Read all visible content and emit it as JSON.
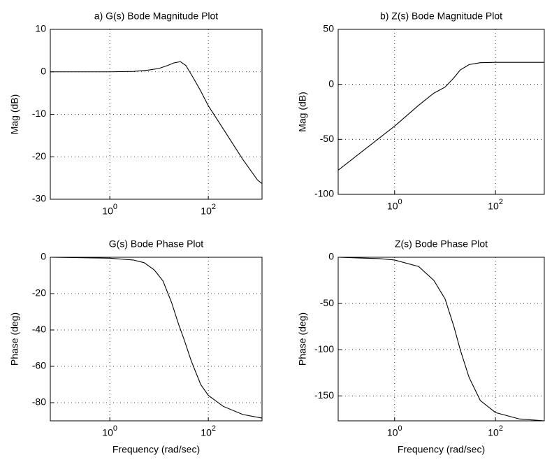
{
  "chart_data": [
    {
      "type": "line",
      "title": "a) G(s) Bode Magnitude Plot",
      "ylabel": "Mag (dB)",
      "x": [
        0.062,
        1,
        3,
        6,
        10,
        15,
        20,
        27,
        35,
        50,
        70,
        100,
        200,
        500,
        1000,
        1230
      ],
      "values": [
        0,
        0,
        0.1,
        0.4,
        0.8,
        1.5,
        2.1,
        2.4,
        1.5,
        -1.5,
        -4.5,
        -8,
        -13.4,
        -20.6,
        -25.5,
        -26.3
      ],
      "color": "#000000",
      "xscale": "log",
      "grid": true,
      "xlim": [
        0.062,
        1230
      ],
      "ylim": [
        -30,
        10
      ],
      "xticks": [
        {
          "value": 1,
          "label": "10^0"
        },
        {
          "value": 100,
          "label": "10^2"
        }
      ],
      "yticks": [
        10,
        0,
        -10,
        -20,
        -30
      ]
    },
    {
      "type": "line",
      "title": "b) Z(s) Bode Magnitude Plot",
      "ylabel": "Mag (dB)",
      "x": [
        0.076,
        1,
        3,
        6,
        10,
        15,
        20,
        30,
        50,
        100,
        300,
        930
      ],
      "values": [
        -78,
        -38,
        -19,
        -8,
        -2.5,
        6,
        13,
        18,
        19.7,
        20,
        20,
        20
      ],
      "color": "#000000",
      "xscale": "log",
      "grid": true,
      "xlim": [
        0.076,
        930
      ],
      "ylim": [
        -100,
        50
      ],
      "xticks": [
        {
          "value": 1,
          "label": "10^0"
        },
        {
          "value": 100,
          "label": "10^2"
        }
      ],
      "yticks": [
        50,
        0,
        -50,
        -100
      ]
    },
    {
      "type": "line",
      "title": "G(s) Bode Phase Plot",
      "ylabel": "Phase (deg)",
      "xlabel": "Frequency (rad/sec)",
      "x": [
        0.062,
        1,
        3,
        5,
        8,
        12,
        18,
        25,
        32,
        45,
        70,
        100,
        200,
        500,
        1230
      ],
      "values": [
        0,
        -0.5,
        -1.5,
        -3,
        -7,
        -13,
        -25,
        -37,
        -45,
        -57,
        -70,
        -76,
        -82,
        -86.5,
        -88.5
      ],
      "color": "#000000",
      "xscale": "log",
      "grid": true,
      "xlim": [
        0.062,
        1230
      ],
      "ylim": [
        -90,
        0
      ],
      "xticks": [
        {
          "value": 1,
          "label": "10^0"
        },
        {
          "value": 100,
          "label": "10^2"
        }
      ],
      "yticks": [
        0,
        -20,
        -40,
        -60,
        -80
      ]
    },
    {
      "type": "line",
      "title": "Z(s) Bode Phase Plot",
      "ylabel": "Phase (deg)",
      "xlabel": "Frequency (rad/sec)",
      "x": [
        0.076,
        0.5,
        1,
        3,
        6,
        10,
        15,
        20,
        30,
        50,
        100,
        300,
        930
      ],
      "values": [
        0,
        -1.5,
        -3,
        -10,
        -25,
        -45,
        -75,
        -100,
        -130,
        -155,
        -168,
        -175,
        -177
      ],
      "color": "#000000",
      "xscale": "log",
      "grid": true,
      "xlim": [
        0.076,
        930
      ],
      "ylim": [
        -177,
        0
      ],
      "xticks": [
        {
          "value": 1,
          "label": "10^0"
        },
        {
          "value": 100,
          "label": "10^2"
        }
      ],
      "yticks": [
        0,
        -50,
        -100,
        -150
      ]
    }
  ]
}
